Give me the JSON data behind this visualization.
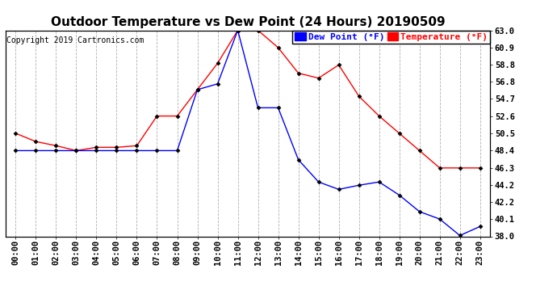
{
  "title": "Outdoor Temperature vs Dew Point (24 Hours) 20190509",
  "copyright": "Copyright 2019 Cartronics.com",
  "hours": [
    "00:00",
    "01:00",
    "02:00",
    "03:00",
    "04:00",
    "05:00",
    "06:00",
    "07:00",
    "08:00",
    "09:00",
    "10:00",
    "11:00",
    "12:00",
    "13:00",
    "14:00",
    "15:00",
    "16:00",
    "17:00",
    "18:00",
    "19:00",
    "20:00",
    "21:00",
    "22:00",
    "23:00"
  ],
  "temperature": [
    50.5,
    49.5,
    49.0,
    48.4,
    48.8,
    48.8,
    49.0,
    52.6,
    52.6,
    55.8,
    59.0,
    63.0,
    63.0,
    60.9,
    57.8,
    57.2,
    58.8,
    55.0,
    52.6,
    50.5,
    48.4,
    46.3,
    46.3,
    46.3
  ],
  "dew_point": [
    48.4,
    48.4,
    48.4,
    48.4,
    48.4,
    48.4,
    48.4,
    48.4,
    48.4,
    55.8,
    56.5,
    63.0,
    53.6,
    53.6,
    47.3,
    44.6,
    43.7,
    44.2,
    44.6,
    43.0,
    41.0,
    40.1,
    38.1,
    39.2
  ],
  "temp_color": "#ff0000",
  "dew_color": "#0000ff",
  "bg_color": "#ffffff",
  "grid_color": "#b0b0b0",
  "ylim_min": 38.0,
  "ylim_max": 63.0,
  "yticks": [
    38.0,
    40.1,
    42.2,
    44.2,
    46.3,
    48.4,
    50.5,
    52.6,
    54.7,
    56.8,
    58.8,
    60.9,
    63.0
  ],
  "legend_dew_label": "Dew Point (°F)",
  "legend_temp_label": "Temperature (°F)",
  "title_fontsize": 11,
  "copyright_fontsize": 7,
  "tick_fontsize": 7.5,
  "legend_fontsize": 8,
  "marker": "D",
  "marker_size": 2.5
}
